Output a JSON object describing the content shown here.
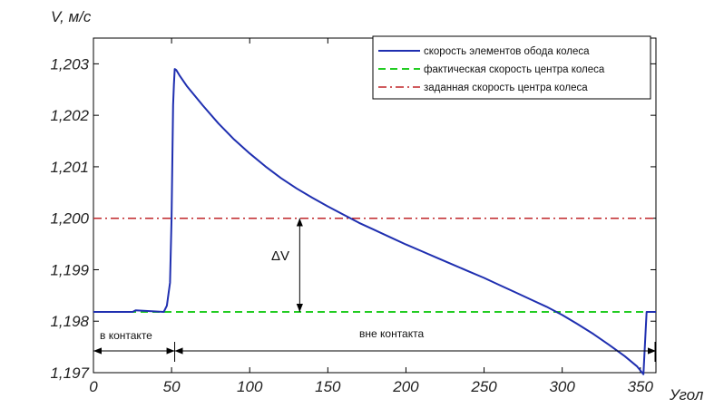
{
  "chart_data": {
    "type": "line",
    "xlabel": "Угол",
    "ylabel": "V, м/с",
    "xlim": [
      0,
      360
    ],
    "ylim": [
      1.197,
      1.2035
    ],
    "x_ticks": [
      0,
      50,
      100,
      150,
      200,
      250,
      300,
      350
    ],
    "x_tick_labels": [
      "0",
      "50",
      "100",
      "150",
      "200",
      "250",
      "300",
      "350"
    ],
    "y_ticks": [
      1.197,
      1.198,
      1.199,
      1.2,
      1.201,
      1.202,
      1.203
    ],
    "y_tick_labels": [
      "1,197",
      "1,198",
      "1,199",
      "1,200",
      "1,201",
      "1,202",
      "1,203"
    ],
    "grid": false,
    "legend_position": "top-right",
    "series": [
      {
        "name": "скорость элементов обода колеса",
        "color": "#1f2fb0",
        "style": "solid",
        "x": [
          0,
          25,
          27,
          45,
          47,
          49,
          50,
          51,
          51.5,
          52,
          53,
          55,
          60,
          70,
          80,
          90,
          100,
          110,
          120,
          130,
          140,
          150,
          160,
          170,
          180,
          190,
          200,
          210,
          220,
          230,
          240,
          250,
          260,
          270,
          280,
          290,
          300,
          310,
          320,
          330,
          340,
          348,
          352,
          354,
          356,
          360
        ],
        "y": [
          1.19818,
          1.19818,
          1.19821,
          1.19818,
          1.1983,
          1.19875,
          1.2,
          1.2022,
          1.2026,
          1.2029,
          1.20288,
          1.20278,
          1.20256,
          1.20219,
          1.20184,
          1.20153,
          1.20126,
          1.20101,
          1.20078,
          1.20058,
          1.2004,
          1.20023,
          1.20007,
          1.19991,
          1.19977,
          1.19963,
          1.19949,
          1.19936,
          1.19923,
          1.1991,
          1.19897,
          1.19884,
          1.1987,
          1.19856,
          1.19842,
          1.19828,
          1.19812,
          1.19794,
          1.19775,
          1.19754,
          1.19732,
          1.19712,
          1.19697,
          1.19818,
          1.19818,
          1.19818
        ]
      },
      {
        "name": "фактическая скорость центра колеса",
        "color": "#22cc22",
        "style": "dashed",
        "x": [
          0,
          360
        ],
        "y": [
          1.19818,
          1.19818
        ]
      },
      {
        "name": "заданная скорость центра колеса",
        "color": "#c0262a",
        "style": "dashdot",
        "x": [
          0,
          360
        ],
        "y": [
          1.2,
          1.2
        ]
      }
    ],
    "annotations": {
      "delta": {
        "label": "ΔV",
        "x": 132,
        "y_from": 1.2,
        "y_to": 1.19818
      },
      "in_contact": {
        "label": "в контакте",
        "x_from": 0,
        "x_to": 52
      },
      "out_contact": {
        "label": "вне контакта",
        "x_from": 52,
        "x_to": 360
      }
    }
  }
}
